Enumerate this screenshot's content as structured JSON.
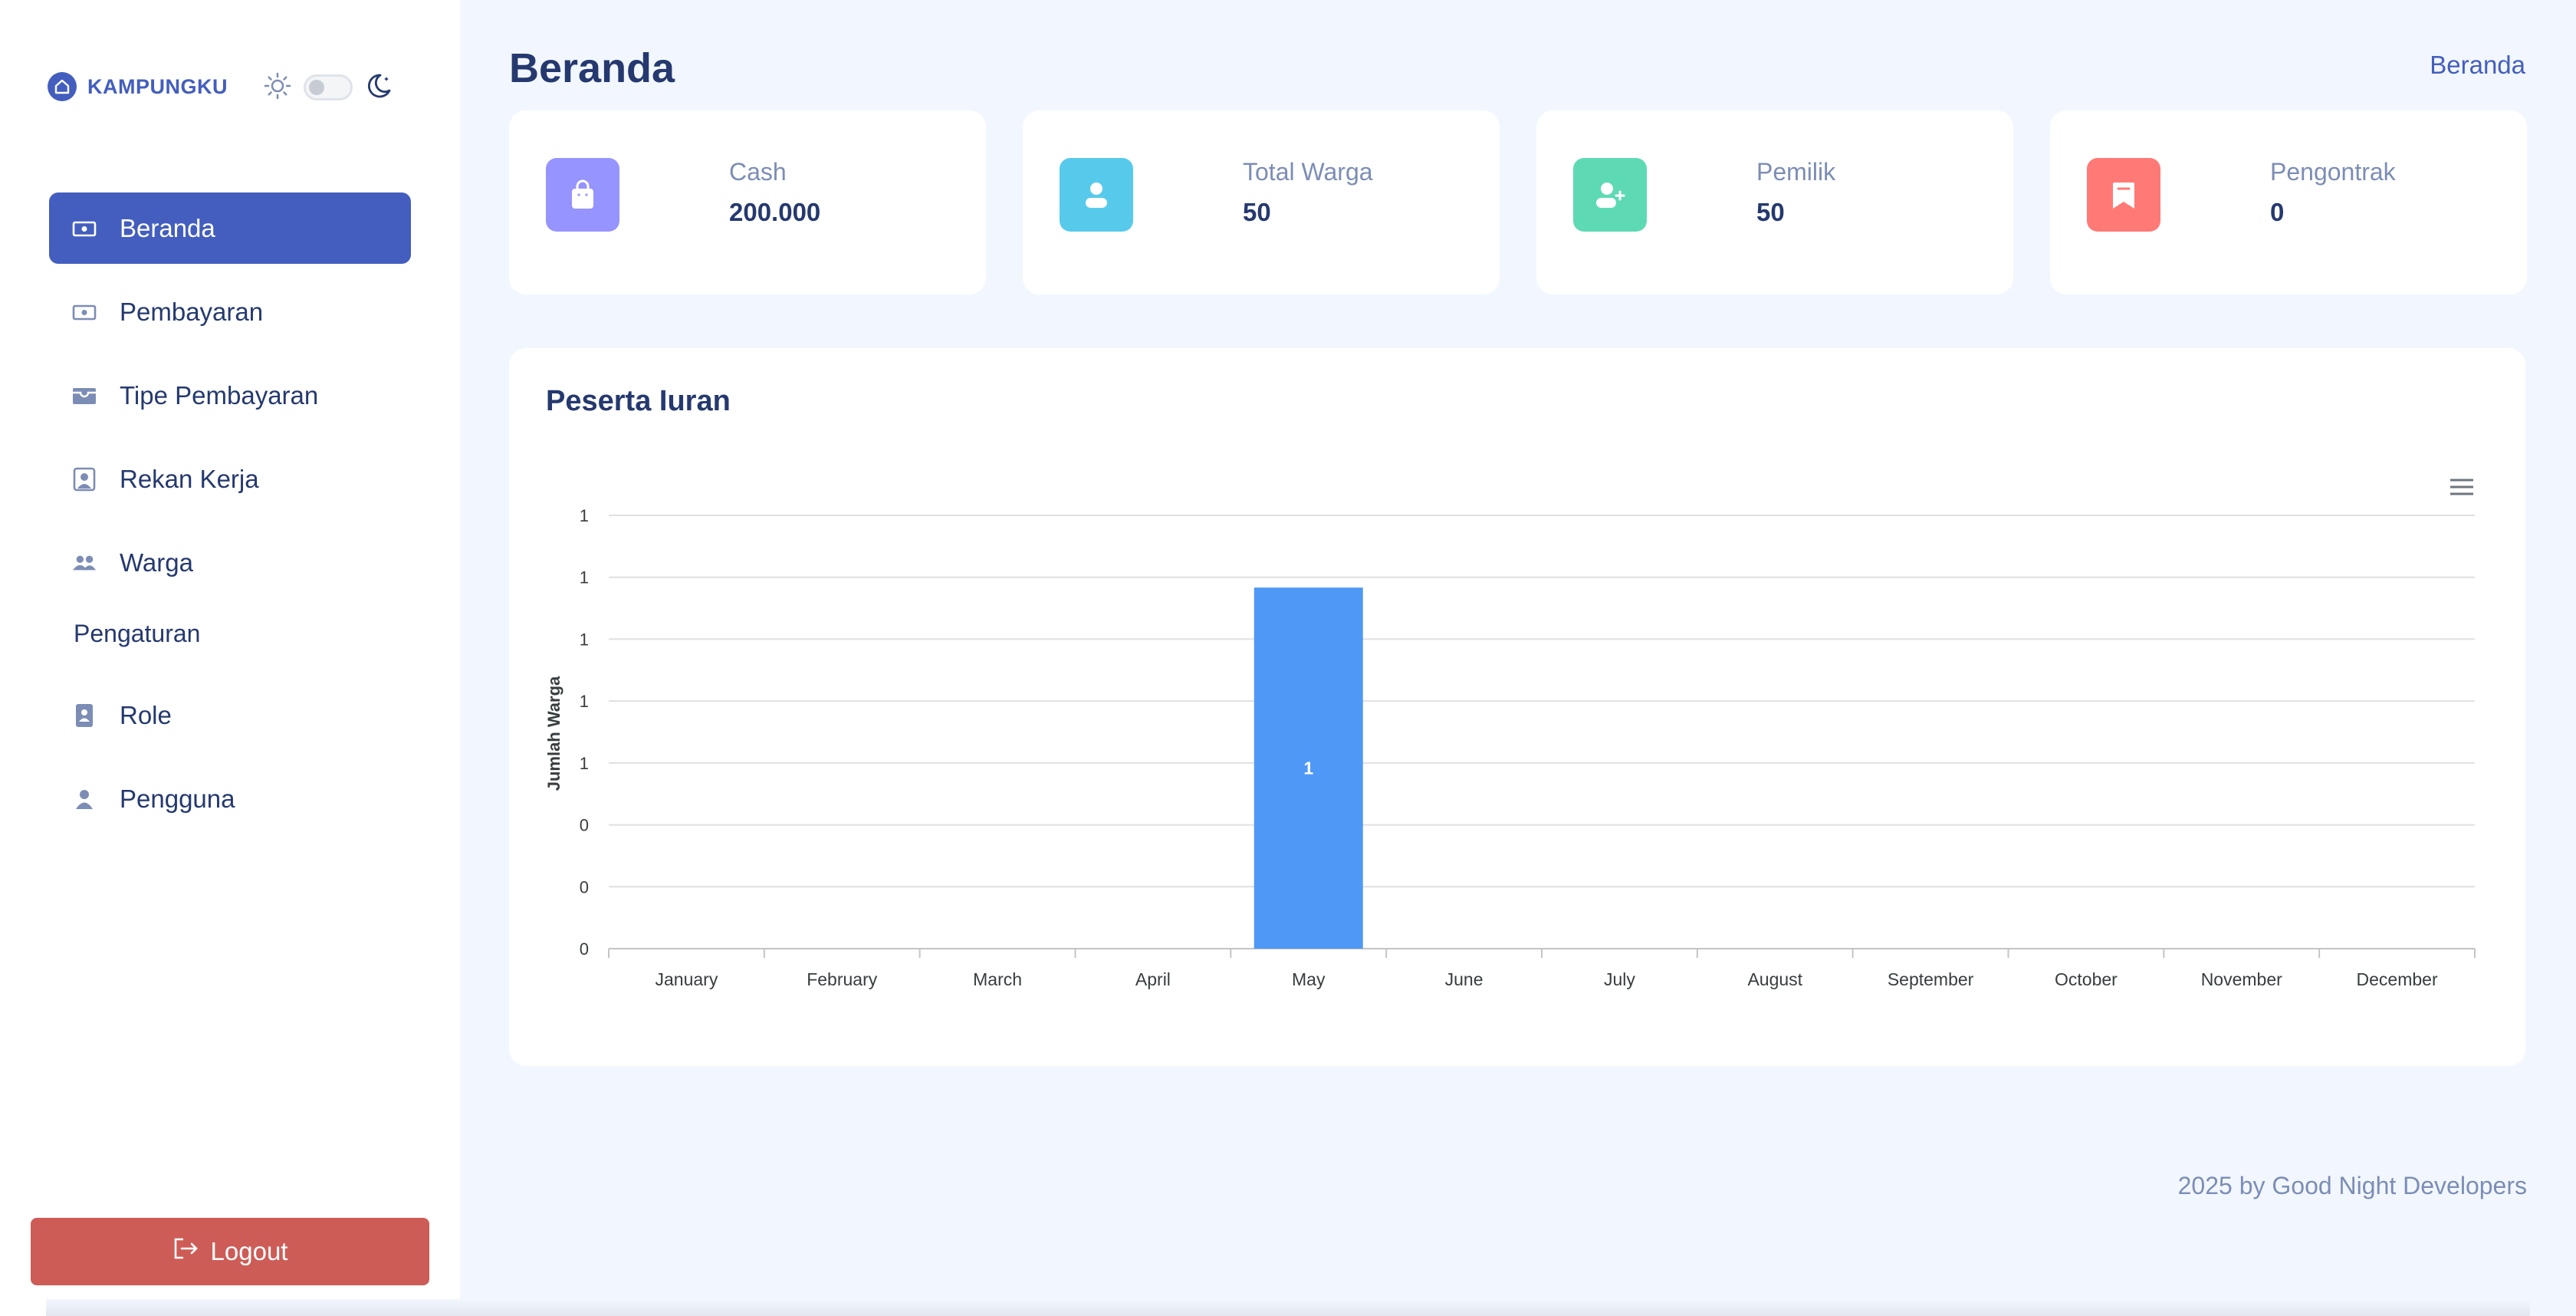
{
  "brand": {
    "name": "KAMPUNGKU"
  },
  "sidebar": {
    "items": [
      {
        "label": "Beranda",
        "icon": "cash-icon",
        "active": true
      },
      {
        "label": "Pembayaran",
        "icon": "cash-icon",
        "active": false
      },
      {
        "label": "Tipe Pembayaran",
        "icon": "wallet-icon",
        "active": false
      },
      {
        "label": "Rekan Kerja",
        "icon": "person-badge-icon",
        "active": false
      },
      {
        "label": "Warga",
        "icon": "people-icon",
        "active": false
      }
    ],
    "section_title": "Pengaturan",
    "settings_items": [
      {
        "label": "Role",
        "icon": "contact-book-icon"
      },
      {
        "label": "Pengguna",
        "icon": "person-icon"
      }
    ],
    "logout_label": "Logout"
  },
  "header": {
    "title": "Beranda",
    "breadcrumb": "Beranda"
  },
  "stats": [
    {
      "label": "Cash",
      "value": "200.000",
      "icon": "shopping-bag-icon",
      "color": "#9694ff"
    },
    {
      "label": "Total Warga",
      "value": "50",
      "icon": "person-icon",
      "color": "#57caeb"
    },
    {
      "label": "Pemilik",
      "value": "50",
      "icon": "person-add-icon",
      "color": "#5ddab4"
    },
    {
      "label": "Pengontrak",
      "value": "0",
      "icon": "bookmark-icon",
      "color": "#ff7976"
    }
  ],
  "chart_card": {
    "title": "Peserta Iuran"
  },
  "chart_data": {
    "type": "bar",
    "categories": [
      "January",
      "February",
      "March",
      "April",
      "May",
      "June",
      "July",
      "August",
      "September",
      "October",
      "November",
      "December"
    ],
    "series": [
      {
        "values": [
          0,
          0,
          0,
          0,
          1,
          0,
          0,
          0,
          0,
          0,
          0,
          0
        ]
      }
    ],
    "y_tick_labels": [
      "0",
      "0",
      "0",
      "1",
      "1",
      "1",
      "1",
      "1"
    ],
    "ylabel": "Jumlah Warga",
    "xlabel": "",
    "ylim": [
      0,
      1.2
    ],
    "bar_color": "#4f98f6",
    "data_labels": true,
    "grid": true
  },
  "footer": {
    "text": "2025 by Good Night Developers"
  },
  "colors": {
    "primary": "#435ebe",
    "logout": "#cd5c57",
    "background": "#f2f7ff"
  }
}
